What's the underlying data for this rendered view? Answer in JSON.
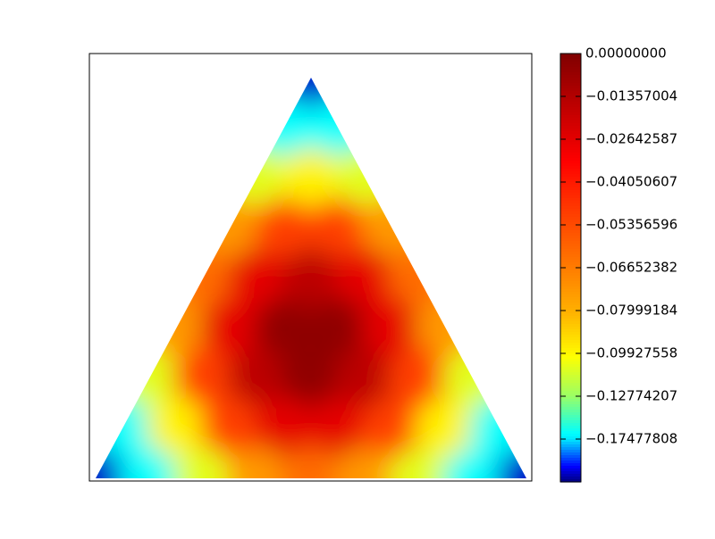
{
  "chart_data": {
    "type": "ternary_heatmap",
    "colormap": "jet",
    "values": [
      [
        -0.25
      ],
      [
        -0.168,
        -0.168
      ],
      [
        -0.109,
        -0.098,
        -0.109
      ],
      [
        -0.074,
        -0.051,
        -0.051,
        -0.074
      ],
      [
        -0.0625,
        -0.027,
        -0.016,
        -0.027,
        -0.0625
      ],
      [
        -0.074,
        -0.027,
        -0.004,
        -0.004,
        -0.027,
        -0.074
      ],
      [
        -0.109,
        -0.051,
        -0.016,
        -0.004,
        -0.016,
        -0.051,
        -0.109
      ],
      [
        -0.168,
        -0.098,
        -0.051,
        -0.027,
        -0.027,
        -0.051,
        -0.098,
        -0.168
      ],
      [
        -0.25,
        -0.168,
        -0.109,
        -0.074,
        -0.0625,
        -0.074,
        -0.109,
        -0.168,
        -0.25
      ]
    ],
    "clim": [
      -0.27,
      0
    ],
    "colorbar_ticks": [
      {
        "value": 0,
        "label": "0.00000000"
      },
      {
        "value": -0.01357004,
        "label": "−0.01357004"
      },
      {
        "value": -0.02642587,
        "label": "−0.02642587"
      },
      {
        "value": -0.04050607,
        "label": "−0.04050607"
      },
      {
        "value": -0.05356596,
        "label": "−0.05356596"
      },
      {
        "value": -0.06652382,
        "label": "−0.06652382"
      },
      {
        "value": -0.07999184,
        "label": "−0.07999184"
      },
      {
        "value": -0.09927558,
        "label": "−0.09927558"
      },
      {
        "value": -0.12774207,
        "label": "−0.12774207"
      },
      {
        "value": -0.17477808,
        "label": "−0.17477808"
      }
    ]
  }
}
